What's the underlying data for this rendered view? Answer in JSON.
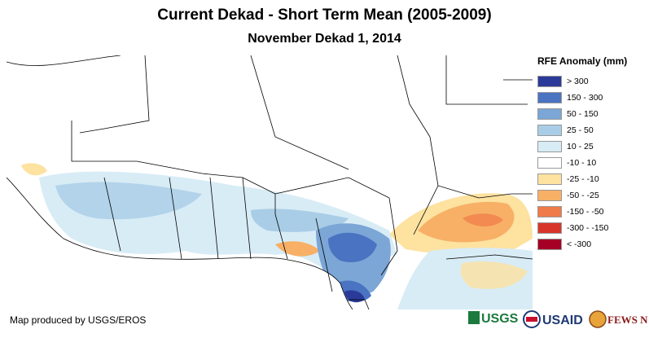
{
  "title": "Current Dekad - Short Term Mean (2005-2009)",
  "subtitle": "November Dekad 1, 2014",
  "legend": {
    "title": "RFE Anomaly (mm)",
    "items": [
      {
        "label": "> 300",
        "color": "#2b3a98"
      },
      {
        "label": "150 - 300",
        "color": "#4a73c2"
      },
      {
        "label": "50 - 150",
        "color": "#7ba6d6"
      },
      {
        "label": "25 - 50",
        "color": "#a9cde6"
      },
      {
        "label": "10 - 25",
        "color": "#d8ecf6"
      },
      {
        "label": "-10 - 10",
        "color": "#ffffff"
      },
      {
        "label": "-25 - -10",
        "color": "#fde2a0"
      },
      {
        "label": "-50 - -25",
        "color": "#f7b066"
      },
      {
        "label": "-150 - -50",
        "color": "#ef7a4a"
      },
      {
        "label": "-300 - -150",
        "color": "#d8352a"
      },
      {
        "label": "< -300",
        "color": "#a50026"
      }
    ]
  },
  "credit": "Map produced by USGS/EROS",
  "logos": {
    "usgs": "USGS",
    "usaid": "USAID",
    "fewsnet": "FEWS NET"
  }
}
